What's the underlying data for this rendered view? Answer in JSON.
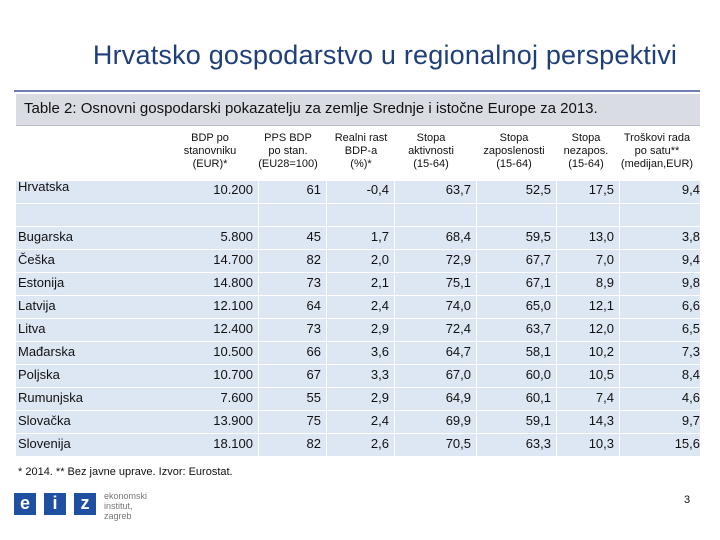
{
  "title": "Hrvatsko gospodarstvo u regionalnoj perspektivi",
  "caption": "Table 2: Osnovni gospodarski pokazatelju za zemlje Srednje i istočne Europe za 2013.",
  "columns": [
    [
      "BDP po",
      "stanovniku",
      "(EUR)*"
    ],
    [
      "PPS BDP",
      "po stan.",
      "(EU28=100)"
    ],
    [
      "Realni rast",
      "BDP-a",
      "(%)*"
    ],
    [
      "Stopa",
      "aktivnosti",
      "(15-64)"
    ],
    [
      "Stopa",
      "zaposlenosti",
      "(15-64)"
    ],
    [
      "Stopa",
      "nezapos.",
      "(15-64)"
    ],
    [
      "Troškovi rada",
      "po satu**",
      "(medijan,EUR)"
    ]
  ],
  "rows": [
    {
      "country": "Hrvatska",
      "values": [
        "10.200",
        "61",
        "-0,4",
        "63,7",
        "52,5",
        "17,5",
        "9,4"
      ]
    },
    {
      "country": "Bugarska",
      "values": [
        "5.800",
        "45",
        "1,7",
        "68,4",
        "59,5",
        "13,0",
        "3,8"
      ]
    },
    {
      "country": "Češka",
      "values": [
        "14.700",
        "82",
        "2,0",
        "72,9",
        "67,7",
        "7,0",
        "9,4"
      ]
    },
    {
      "country": "Estonija",
      "values": [
        "14.800",
        "73",
        "2,1",
        "75,1",
        "67,1",
        "8,9",
        "9,8"
      ]
    },
    {
      "country": "Latvija",
      "values": [
        "12.100",
        "64",
        "2,4",
        "74,0",
        "65,0",
        "12,1",
        "6,6"
      ]
    },
    {
      "country": "Litva",
      "values": [
        "12.400",
        "73",
        "2,9",
        "72,4",
        "63,7",
        "12,0",
        "6,5"
      ]
    },
    {
      "country": "Mađarska",
      "values": [
        "10.500",
        "66",
        "3,6",
        "64,7",
        "58,1",
        "10,2",
        "7,3"
      ]
    },
    {
      "country": "Poljska",
      "values": [
        "10.700",
        "67",
        "3,3",
        "67,0",
        "60,0",
        "10,5",
        "8,4"
      ]
    },
    {
      "country": "Rumunjska",
      "values": [
        "7.600",
        "55",
        "2,9",
        "64,9",
        "60,1",
        "7,4",
        "4,6"
      ]
    },
    {
      "country": "Slovačka",
      "values": [
        "13.900",
        "75",
        "2,4",
        "69,9",
        "59,1",
        "14,3",
        "9,7"
      ]
    },
    {
      "country": "Slovenija",
      "values": [
        "18.100",
        "82",
        "2,6",
        "70,5",
        "63,3",
        "10,3",
        "15,6"
      ]
    }
  ],
  "footnote": "* 2014. ** Bez javne uprave. Izvor: Eurostat.",
  "logo": {
    "letters": [
      "e",
      "i",
      "z"
    ],
    "text_lines": [
      "ekonomski",
      "institut,",
      "zagreb"
    ]
  },
  "page_number": "3",
  "colors": {
    "title": "#1f3f7a",
    "band": "#dde7f3",
    "caption_bg": "#d9dce3",
    "logo_blue": "#1f4fa0"
  }
}
